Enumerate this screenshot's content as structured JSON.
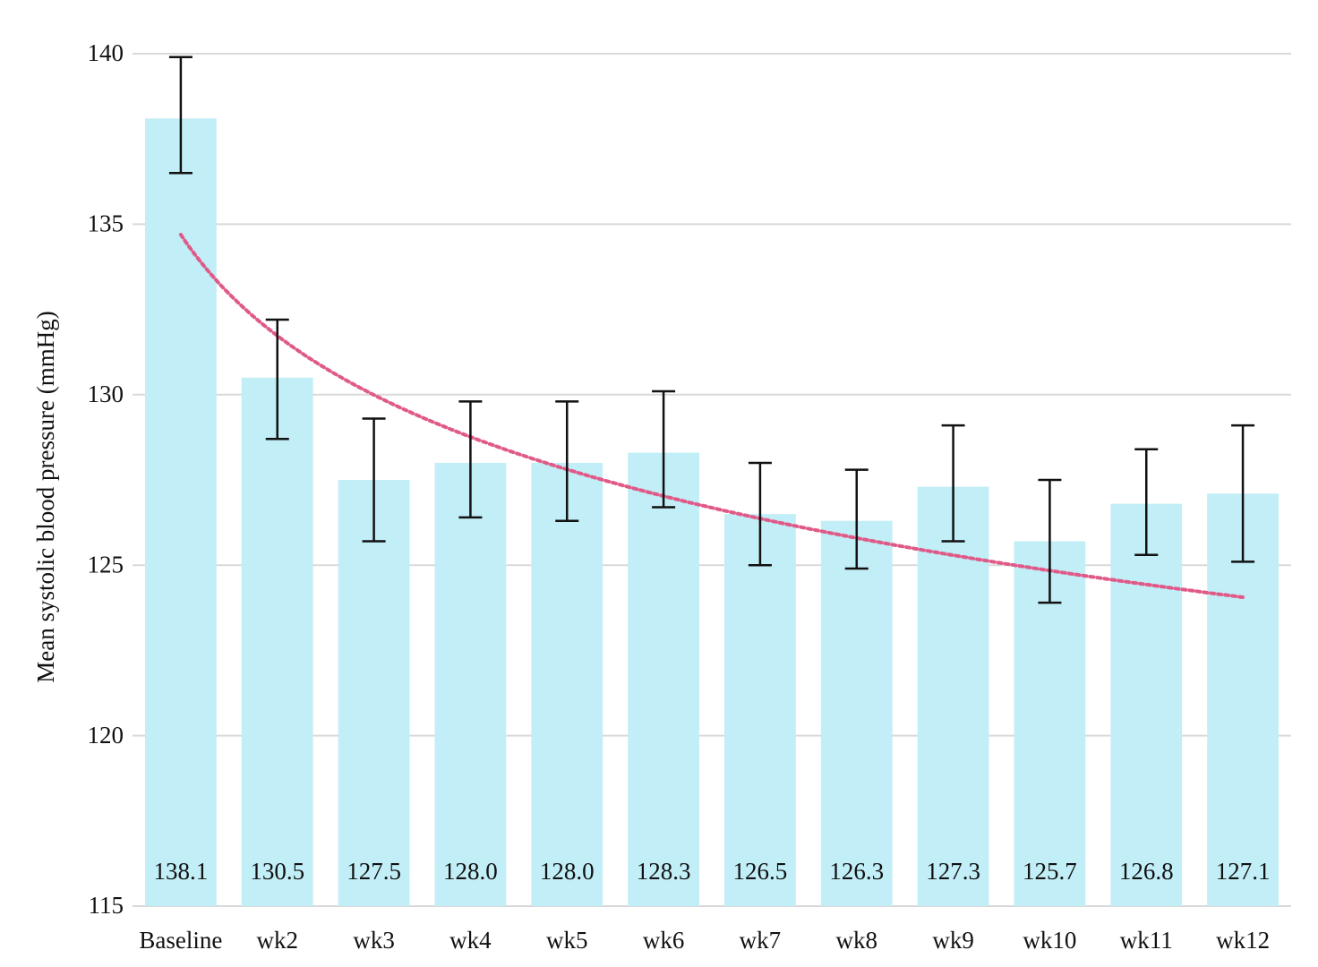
{
  "chart_data": {
    "type": "bar",
    "title": "",
    "xlabel": "",
    "ylabel": "Mean systolic blood pressure (mmHg)",
    "ylim": [
      115,
      140
    ],
    "yticks": [
      "115",
      "120",
      "125",
      "130",
      "135",
      "140"
    ],
    "grid": true,
    "categories": [
      "Baseline",
      "wk2",
      "wk3",
      "wk4",
      "wk5",
      "wk6",
      "wk7",
      "wk8",
      "wk9",
      "wk10",
      "wk11",
      "wk12"
    ],
    "values": [
      138.1,
      130.5,
      127.5,
      128.0,
      128.0,
      128.3,
      126.5,
      126.3,
      127.3,
      125.7,
      126.8,
      127.1
    ],
    "value_labels": [
      "138.1",
      "130.5",
      "127.5",
      "128.0",
      "128.0",
      "128.3",
      "126.5",
      "126.3",
      "127.3",
      "125.7",
      "126.8",
      "127.1"
    ],
    "error_low": [
      136.5,
      128.7,
      125.7,
      126.4,
      126.3,
      126.7,
      125.0,
      124.9,
      125.7,
      123.9,
      125.3,
      125.1
    ],
    "error_high": [
      139.9,
      132.2,
      129.3,
      129.8,
      129.8,
      130.1,
      128.0,
      127.8,
      129.1,
      127.5,
      128.4,
      129.1
    ],
    "trendline": {
      "type": "logarithmic",
      "style": "dotted",
      "values": [
        134.7,
        131.7,
        130.0,
        128.8,
        127.8,
        127.0,
        126.4,
        125.8,
        125.3,
        124.8,
        124.4,
        124.1
      ]
    },
    "colors": {
      "bar": "#c2eef7",
      "error_bar": "#111111",
      "trendline": "#e05a88",
      "grid": "#d9d9d9"
    }
  }
}
